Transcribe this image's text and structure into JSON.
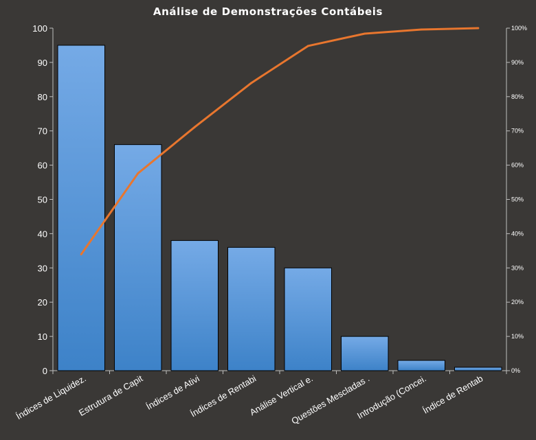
{
  "chart_data": {
    "type": "bar",
    "title": "Análise de Demonstrações Contábeis",
    "categories": [
      "Índices de Liquidez.",
      "Estrutura de Capit",
      "Índices de Ativi",
      "Índices de Rentabi",
      "Análise Vertical e.",
      "Questões Mescladas .",
      "Introdução (Concei.",
      "Índice de Rentab"
    ],
    "series": [
      {
        "type": "bar",
        "values": [
          95,
          66,
          38,
          36,
          30,
          10,
          3,
          1
        ]
      },
      {
        "type": "line",
        "axis": "secondary",
        "values": [
          0.34,
          0.576,
          0.711,
          0.84,
          0.948,
          0.984,
          0.996,
          1.0
        ]
      }
    ],
    "ylim": [
      0,
      100
    ],
    "yticks": [
      "0",
      "10",
      "20",
      "30",
      "40",
      "50",
      "60",
      "70",
      "80",
      "90",
      "100"
    ],
    "y2lim": [
      0,
      1
    ],
    "y2ticks": [
      "0%",
      "10%",
      "20%",
      "30%",
      "40%",
      "50%",
      "60%",
      "70%",
      "80%",
      "90%",
      "100%"
    ],
    "grid": false,
    "legend": "none",
    "colors": {
      "background": "#3a3836",
      "bar_top": "#75aae6",
      "bar_bottom": "#3d82c8",
      "bar_border": "#000000",
      "line": "#e8762e",
      "axis": "#bfbfbf",
      "text": "#ffffff"
    }
  }
}
